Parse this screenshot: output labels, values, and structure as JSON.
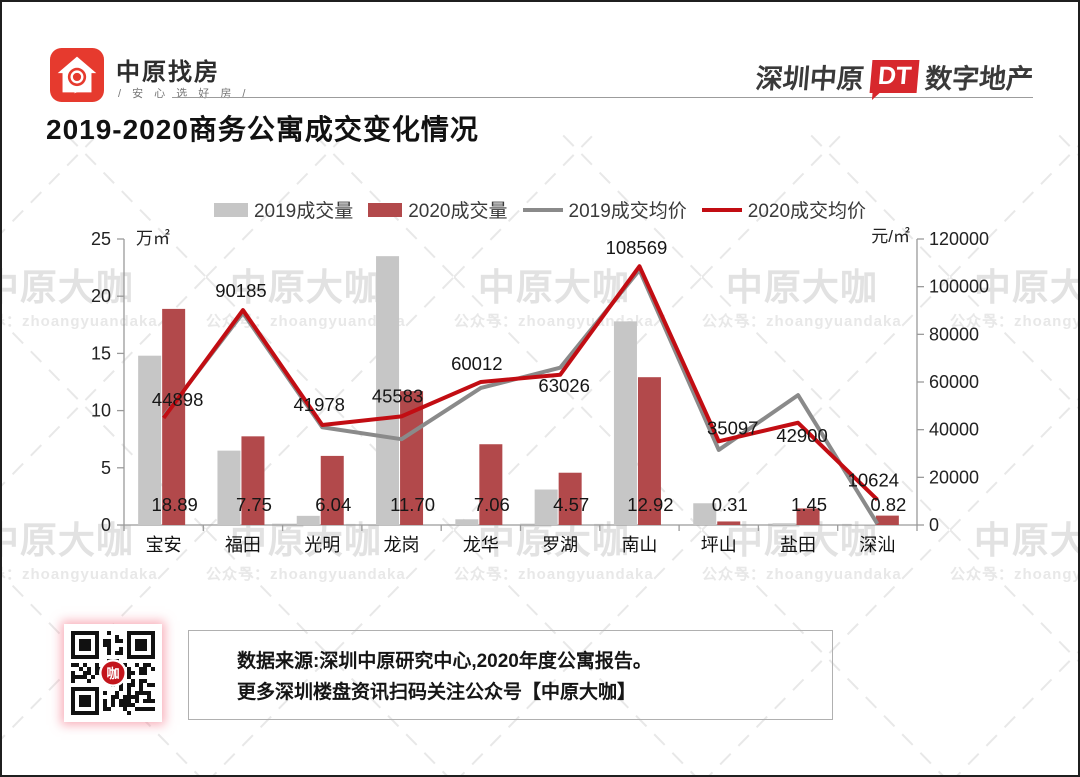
{
  "header": {
    "logo_brand": "中原找房",
    "logo_tagline": "/ 安 心 选 好 房 /",
    "right_brand": {
      "part1": "深圳中原",
      "dt": "DT",
      "part2": "数字地产"
    }
  },
  "title": "2019-2020商务公寓成交变化情况",
  "watermark": {
    "big": "中原大咖",
    "small": "公众号：zhoangyuandaka"
  },
  "chart_data": {
    "type": "combo-bar-line",
    "title": "2019-2020商务公寓成交变化情况",
    "categories": [
      "宝安",
      "福田",
      "光明",
      "龙岗",
      "龙华",
      "罗湖",
      "南山",
      "坪山",
      "盐田",
      "深汕"
    ],
    "series": [
      {
        "name": "2019成交量",
        "type": "bar",
        "axis": "left",
        "color": "#c6c6c6",
        "values": [
          14.8,
          6.5,
          0.8,
          23.5,
          0.5,
          3.1,
          17.8,
          1.9,
          0.15,
          0.05
        ]
      },
      {
        "name": "2020成交量",
        "type": "bar",
        "axis": "left",
        "color": "#b2494b",
        "values": [
          18.89,
          7.75,
          6.04,
          11.7,
          7.06,
          4.57,
          12.92,
          0.31,
          1.45,
          0.82
        ],
        "labels": [
          "18.89",
          "7.75",
          "6.04",
          "11.70",
          "7.06",
          "4.57",
          "12.92",
          "0.31",
          "1.45",
          "0.82"
        ]
      },
      {
        "name": "2019成交均价",
        "type": "line",
        "axis": "right",
        "color": "#8a8a8a",
        "values": [
          45500,
          89000,
          41000,
          36000,
          57500,
          66000,
          107000,
          31500,
          54500,
          500
        ]
      },
      {
        "name": "2020成交均价",
        "type": "line",
        "axis": "right",
        "color": "#c20d13",
        "values": [
          44898,
          90185,
          41978,
          45583,
          60012,
          63026,
          108569,
          35097,
          42900,
          10624
        ],
        "labels": [
          "44898",
          "90185",
          "41978",
          "45583",
          "60012",
          "63026",
          "108569",
          "35097",
          "42900",
          "10624"
        ]
      }
    ],
    "left_axis": {
      "unit": "万㎡",
      "ticks": [
        0,
        5,
        10,
        15,
        20,
        25
      ],
      "ylim": [
        0,
        25
      ]
    },
    "right_axis": {
      "unit": "元/㎡",
      "ticks": [
        0,
        20000,
        40000,
        60000,
        80000,
        100000,
        120000
      ],
      "ylim": [
        0,
        120000
      ]
    },
    "legend_position": "top",
    "grid": false
  },
  "footer": {
    "line1": "数据来源:深圳中原研究中心,2020年度公寓报告。",
    "line2": "更多深圳楼盘资讯扫码关注公众号【中原大咖】",
    "qr_center_glyph": "咖"
  }
}
